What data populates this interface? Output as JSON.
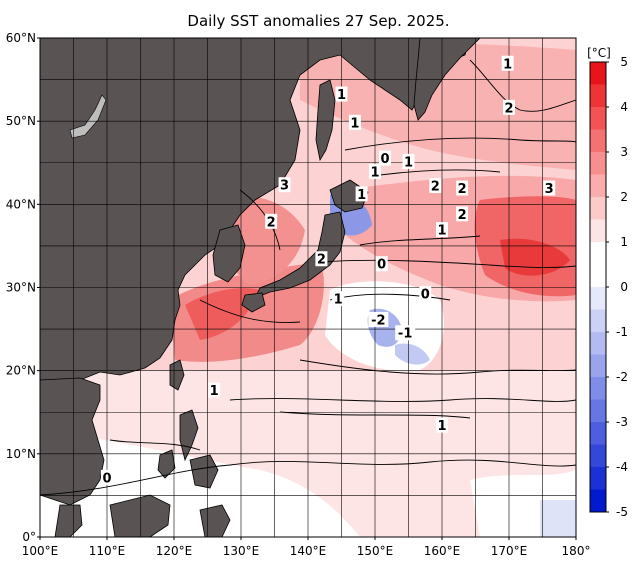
{
  "map": {
    "title": "Daily SST anomalies 27 Sep. 2025.",
    "extent": {
      "lon": [
        100,
        180
      ],
      "lat": [
        0,
        60
      ]
    },
    "lat_ticks": [
      "0°",
      "10°N",
      "20°N",
      "30°N",
      "40°N",
      "50°N",
      "60°N"
    ],
    "lon_ticks": [
      "100°E",
      "110°E",
      "120°E",
      "130°E",
      "140°E",
      "150°E",
      "160°E",
      "170°E",
      "180°"
    ],
    "grid_step_deg": 5,
    "land_color": "#595353",
    "contour_labels": [
      {
        "text": "1",
        "lon": 145.0,
        "lat": 53.2
      },
      {
        "text": "1",
        "lon": 147.0,
        "lat": 49.8
      },
      {
        "text": "2",
        "lon": 170.0,
        "lat": 51.6
      },
      {
        "text": "1",
        "lon": 169.8,
        "lat": 56.9
      },
      {
        "text": "0",
        "lon": 151.5,
        "lat": 45.5
      },
      {
        "text": "1",
        "lon": 155.0,
        "lat": 45.1
      },
      {
        "text": "1",
        "lon": 150.0,
        "lat": 43.9
      },
      {
        "text": "2",
        "lon": 159.0,
        "lat": 42.2
      },
      {
        "text": "2",
        "lon": 163.0,
        "lat": 41.9
      },
      {
        "text": "3",
        "lon": 176.0,
        "lat": 41.9
      },
      {
        "text": "3",
        "lon": 136.5,
        "lat": 42.3
      },
      {
        "text": "1",
        "lon": 148.0,
        "lat": 41.2
      },
      {
        "text": "2",
        "lon": 163.0,
        "lat": 38.8
      },
      {
        "text": "2",
        "lon": 134.5,
        "lat": 37.9
      },
      {
        "text": "1",
        "lon": 160.0,
        "lat": 36.9
      },
      {
        "text": "2",
        "lon": 142.0,
        "lat": 33.4
      },
      {
        "text": "0",
        "lon": 151.0,
        "lat": 32.8
      },
      {
        "text": "1",
        "lon": 144.5,
        "lat": 28.6
      },
      {
        "text": "0",
        "lon": 157.5,
        "lat": 29.2
      },
      {
        "text": "-2",
        "lon": 150.5,
        "lat": 26.1
      },
      {
        "text": "-1",
        "lon": 154.5,
        "lat": 24.5
      },
      {
        "text": "1",
        "lon": 126.0,
        "lat": 17.6
      },
      {
        "text": "1",
        "lon": 160.0,
        "lat": 13.4
      },
      {
        "text": "0",
        "lon": 110.0,
        "lat": 7.1
      }
    ]
  },
  "colorbar": {
    "unit_label": "[°C]",
    "min": -5,
    "max": 5,
    "tick_labels": [
      "5",
      "4",
      "3",
      "2",
      "1",
      "0",
      "-1",
      "-2",
      "-3",
      "-4",
      "-5"
    ],
    "colors_top_to_bottom": [
      "#e8141b",
      "#ee3535",
      "#f25454",
      "#f57272",
      "#f88f8f",
      "#fbacac",
      "#fdcaca",
      "#fee5e5",
      "#ffffff",
      "#ffffff",
      "#e6e9fb",
      "#ccd2f6",
      "#b3bbf2",
      "#99a4ed",
      "#808de8",
      "#6676e3",
      "#4d5fde",
      "#3348d9",
      "#1a31d4",
      "#001acf"
    ]
  }
}
